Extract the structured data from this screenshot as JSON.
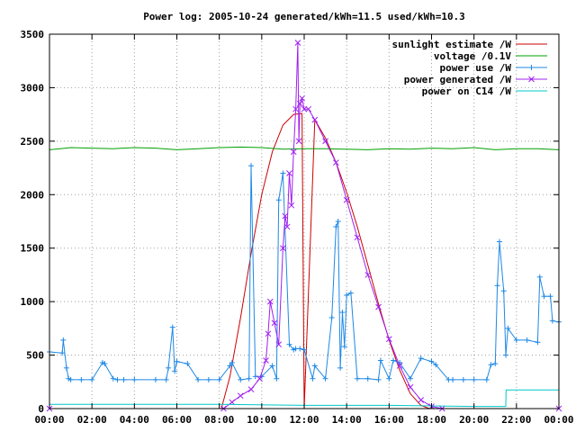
{
  "chart_data": {
    "type": "line",
    "title": "Power log: 2005-10-24 generated/kWh=11.5 used/kWh=10.3",
    "xlabel": "",
    "ylabel": "",
    "x_ticks": [
      "00:00",
      "02:00",
      "04:00",
      "06:00",
      "08:00",
      "10:00",
      "12:00",
      "14:00",
      "16:00",
      "18:00",
      "20:00",
      "22:00",
      "00:00"
    ],
    "xlim_hours": [
      0,
      24
    ],
    "ylim": [
      0,
      3500
    ],
    "y_ticks": [
      0,
      500,
      1000,
      1500,
      2000,
      2500,
      3000,
      3500
    ],
    "grid": true,
    "legend_position": "top-right",
    "series": [
      {
        "name": "sunlight estimate /W",
        "color": "#cc0000",
        "style": "line",
        "x": [
          0,
          8.1,
          8.5,
          9.0,
          9.5,
          10.0,
          10.5,
          11.0,
          11.5,
          11.9,
          12.0,
          12.5,
          13.0,
          13.5,
          14.0,
          14.5,
          15.0,
          15.5,
          16.0,
          16.5,
          17.0,
          17.5,
          17.9,
          24
        ],
        "y": [
          0,
          0,
          300,
          850,
          1450,
          2000,
          2400,
          2650,
          2750,
          2760,
          0,
          2700,
          2530,
          2300,
          2020,
          1700,
          1340,
          980,
          640,
          360,
          140,
          30,
          0,
          0
        ]
      },
      {
        "name": "voltage /0.1V",
        "color": "#00a000",
        "style": "line",
        "x": [
          0,
          0.5,
          1,
          2,
          3,
          4,
          5,
          6,
          7,
          8,
          9,
          10,
          11,
          12,
          13,
          14,
          15,
          16,
          17,
          18,
          19,
          20,
          21,
          22,
          23,
          24
        ],
        "y": [
          2420,
          2430,
          2440,
          2435,
          2430,
          2440,
          2435,
          2420,
          2430,
          2440,
          2445,
          2440,
          2425,
          2430,
          2430,
          2425,
          2420,
          2430,
          2425,
          2435,
          2430,
          2440,
          2420,
          2430,
          2430,
          2420
        ]
      },
      {
        "name": "power use /W",
        "color": "#1e88e5",
        "style": "linepoints",
        "x": [
          0,
          0.6,
          0.65,
          0.8,
          0.9,
          1.0,
          1.5,
          2.0,
          2.5,
          2.6,
          3.0,
          3.2,
          3.5,
          4.0,
          5.0,
          5.5,
          5.6,
          5.8,
          5.9,
          6.0,
          6.5,
          7.0,
          7.5,
          8.0,
          8.5,
          8.6,
          9.0,
          9.4,
          9.5,
          9.7,
          10.0,
          10.5,
          10.7,
          10.8,
          11.0,
          11.3,
          11.5,
          11.6,
          11.8,
          12.0,
          12.4,
          12.5,
          13.0,
          13.3,
          13.5,
          13.6,
          13.7,
          13.8,
          13.9,
          14.0,
          14.2,
          14.5,
          15.0,
          15.5,
          15.6,
          16.0,
          16.2,
          16.5,
          17.0,
          17.5,
          18.0,
          18.2,
          18.8,
          19.0,
          19.5,
          20.0,
          20.6,
          20.8,
          21.0,
          21.1,
          21.2,
          21.4,
          21.5,
          21.6,
          22.0,
          22.5,
          23.0,
          23.1,
          23.3,
          23.6,
          23.7,
          24.0
        ],
        "y": [
          530,
          520,
          640,
          380,
          280,
          270,
          270,
          270,
          430,
          420,
          280,
          270,
          270,
          270,
          270,
          270,
          380,
          760,
          350,
          440,
          420,
          270,
          270,
          270,
          400,
          430,
          270,
          280,
          2270,
          300,
          300,
          400,
          280,
          1950,
          2200,
          600,
          550,
          560,
          560,
          550,
          280,
          400,
          280,
          850,
          1700,
          1750,
          380,
          900,
          580,
          1060,
          1080,
          280,
          280,
          270,
          450,
          280,
          450,
          430,
          280,
          470,
          440,
          410,
          270,
          270,
          270,
          270,
          270,
          410,
          420,
          1150,
          1560,
          1100,
          500,
          750,
          640,
          640,
          620,
          1230,
          1050,
          1050,
          820,
          810
        ]
      },
      {
        "name": "power generated /W",
        "color": "#a020f0",
        "style": "linepoints",
        "x": [
          0,
          8.2,
          8.6,
          9.0,
          9.5,
          9.9,
          10.2,
          10.3,
          10.4,
          10.6,
          10.8,
          11.0,
          11.1,
          11.2,
          11.3,
          11.4,
          11.5,
          11.6,
          11.7,
          11.75,
          11.8,
          11.9,
          12.0,
          12.2,
          12.5,
          13.0,
          13.5,
          14.0,
          14.5,
          15.0,
          15.5,
          16.0,
          16.5,
          17.0,
          17.5,
          18.0,
          18.5,
          24
        ],
        "y": [
          0,
          0,
          60,
          120,
          180,
          280,
          450,
          700,
          1000,
          800,
          600,
          1500,
          1800,
          1700,
          2200,
          1900,
          2400,
          2800,
          3420,
          2500,
          2850,
          2900,
          2800,
          2800,
          2700,
          2500,
          2300,
          1950,
          1600,
          1250,
          950,
          650,
          400,
          200,
          80,
          20,
          0,
          0
        ]
      },
      {
        "name": "power on C14 /W",
        "color": "#00c8c8",
        "style": "line",
        "x": [
          0,
          8,
          12,
          16,
          18,
          20,
          21.5,
          21.51,
          24
        ],
        "y": [
          40,
          40,
          30,
          30,
          25,
          20,
          20,
          175,
          175
        ]
      }
    ]
  }
}
